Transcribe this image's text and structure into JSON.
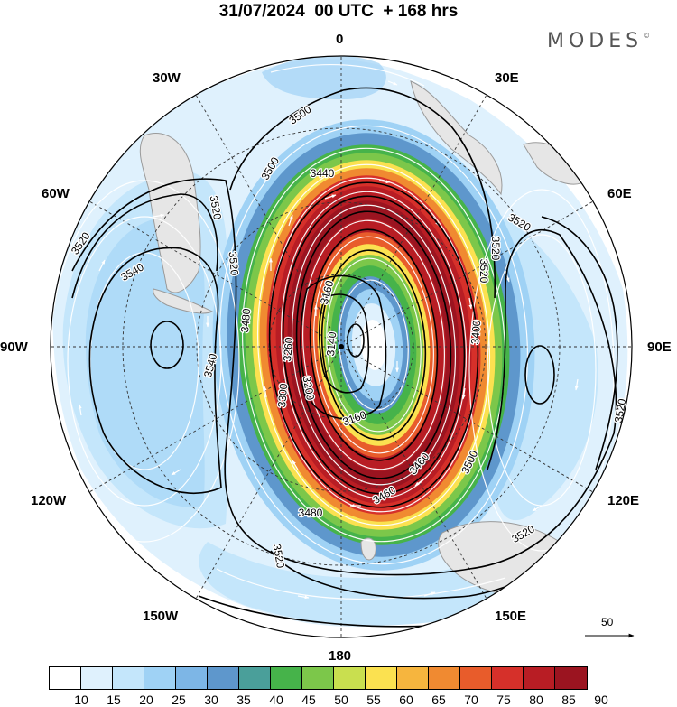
{
  "header": {
    "title": "31/07/2024  00 UTC  + 168 hrs",
    "brand": "MODES",
    "brand_mark": "©"
  },
  "map": {
    "projection": "south-polar-stereographic",
    "longitude_labels": [
      "0",
      "30E",
      "60E",
      "90E",
      "120E",
      "150E",
      "180",
      "150W",
      "120W",
      "90W",
      "60W",
      "30W"
    ],
    "contour_labels": [
      "3500",
      "3500",
      "3440",
      "3520",
      "3520",
      "3520",
      "3540",
      "3540",
      "3480",
      "3520",
      "3160",
      "3140",
      "3260",
      "3300",
      "3200",
      "3160",
      "3460",
      "3460",
      "3480",
      "3500",
      "3520",
      "3520",
      "3520",
      "3520",
      "3400",
      "3520"
    ],
    "coastline_color": "#9a9a9a",
    "land_color": "#e6e6e6"
  },
  "colorbar": {
    "ticks": [
      "10",
      "15",
      "20",
      "25",
      "30",
      "35",
      "40",
      "45",
      "50",
      "55",
      "60",
      "65",
      "70",
      "75",
      "80",
      "85",
      "90"
    ],
    "colors": [
      "#ffffff",
      "#dff1fd",
      "#c4e6fb",
      "#9fd2f5",
      "#7db6e6",
      "#5e97cc",
      "#4a9f9a",
      "#46b34a",
      "#7cc74a",
      "#c9df4f",
      "#fbe150",
      "#f6b53e",
      "#f08a31",
      "#e85c2b",
      "#d6302a",
      "#b81d24",
      "#9b1420"
    ]
  },
  "reference_vector": {
    "label": "50"
  }
}
